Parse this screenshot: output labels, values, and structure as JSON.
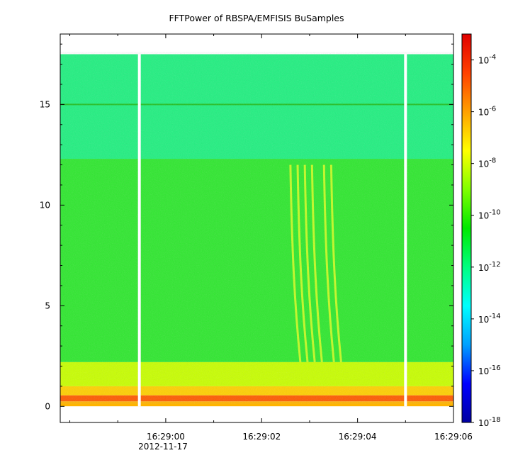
{
  "chart_data": {
    "type": "heatmap",
    "title": "FFTPower of RBSPA/EMFISIS  BuSamples",
    "xlabel": "",
    "ylabel": "",
    "x_ticks": [
      "16:29:00",
      "16:29:02",
      "16:29:04",
      "16:29:06"
    ],
    "x_sublabel": "2012-11-17",
    "y_ticks": [
      "0",
      "5",
      "10",
      "15"
    ],
    "ylim": [
      -0.8,
      18.5
    ],
    "data_ylim": [
      0,
      17.5
    ],
    "xlim_seconds": [
      -2.2,
      6.0
    ],
    "data_gaps_seconds": [
      -0.55,
      5.0
    ],
    "colorbar": {
      "scale": "log",
      "range": [
        1e-18,
        0.001
      ],
      "tick_exponents": [
        "-4",
        "-6",
        "-8",
        "-10",
        "-12",
        "-14",
        "-16",
        "-18"
      ],
      "colors": [
        "#0000a0",
        "#0000ff",
        "#00a0ff",
        "#00ffff",
        "#00ff80",
        "#00e800",
        "#80ff00",
        "#ffff00",
        "#ffa000",
        "#ff4000",
        "#e00000"
      ]
    },
    "bands": [
      {
        "from": 0,
        "to": 0.25,
        "level": "orange"
      },
      {
        "from": 0.25,
        "to": 0.55,
        "level": "red-orange"
      },
      {
        "from": 0.55,
        "to": 1.0,
        "level": "orange-yellow"
      },
      {
        "from": 1.0,
        "to": 2.2,
        "level": "yellow-green"
      },
      {
        "from": 2.2,
        "to": 12.3,
        "level": "green"
      },
      {
        "from": 12.3,
        "to": 17.5,
        "level": "aqua-green"
      }
    ],
    "line_features": [
      {
        "y": 15.0,
        "level": "green"
      }
    ],
    "emission_features_seconds": [
      2.6,
      2.75,
      2.9,
      3.05,
      3.3,
      3.45
    ]
  }
}
